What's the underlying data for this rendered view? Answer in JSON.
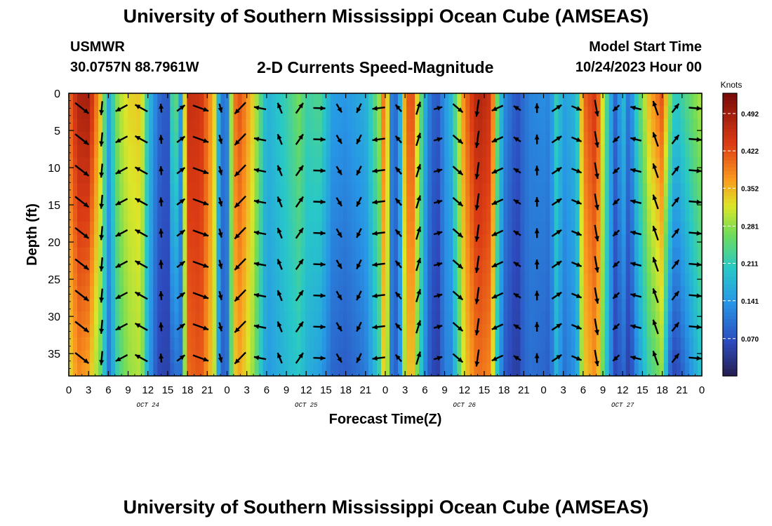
{
  "header": {
    "title": "University of Southern Mississippi Ocean Cube (AMSEAS)",
    "station": "USMWR",
    "coords": "30.0757N  88.7961W",
    "subtitle": "2-D Currents Speed-Magnitude",
    "start_label": "Model Start Time",
    "start_value": "10/24/2023 Hour 00"
  },
  "footer": {
    "title": "University of Southern Mississippi Ocean Cube (AMSEAS)"
  },
  "chart_data": {
    "type": "heatmap",
    "title": "2-D Currents Speed-Magnitude",
    "xlabel": "Forecast Time(Z)",
    "ylabel": "Depth (ft)",
    "x_range_hours": [
      0,
      96
    ],
    "x_ticks": [
      "0",
      "3",
      "6",
      "9",
      "12",
      "15",
      "18",
      "21",
      "0",
      "3",
      "6",
      "9",
      "12",
      "15",
      "18",
      "21",
      "0",
      "3",
      "6",
      "9",
      "12",
      "15",
      "18",
      "21",
      "0",
      "3",
      "6",
      "9",
      "12",
      "15",
      "18",
      "21",
      "0"
    ],
    "day_labels": [
      "OCT 24",
      "OCT 25",
      "OCT 26",
      "OCT 27"
    ],
    "y_range_ft": [
      0,
      38
    ],
    "y_ticks": [
      "0",
      "5",
      "10",
      "15",
      "20",
      "25",
      "30",
      "35"
    ],
    "y_inverted": true,
    "colorbar": {
      "unit": "Knots",
      "range": [
        0.0,
        0.53
      ],
      "ticks": [
        "0.492",
        "0.422",
        "0.352",
        "0.281",
        "0.211",
        "0.141",
        "0.070"
      ],
      "colormap": "jet"
    },
    "speed_profile": {
      "hours": [
        0,
        1.5,
        3,
        5,
        6,
        7.5,
        9,
        11,
        12,
        13.5,
        15,
        16,
        17,
        18,
        20,
        22,
        23,
        24,
        25,
        26,
        28,
        30,
        33,
        35,
        36,
        38,
        40,
        42,
        45,
        47,
        48,
        49,
        50,
        51,
        52,
        54,
        55,
        56,
        57,
        58,
        60,
        62,
        64,
        65,
        66,
        67,
        68,
        69,
        70,
        72,
        73,
        74,
        75,
        77,
        78,
        80,
        82,
        83,
        84,
        85,
        86,
        88,
        90,
        91,
        92,
        94,
        96
      ],
      "knots_surface": [
        0.4,
        0.48,
        0.49,
        0.33,
        0.15,
        0.29,
        0.33,
        0.34,
        0.2,
        0.1,
        0.07,
        0.3,
        0.14,
        0.46,
        0.45,
        0.35,
        0.1,
        0.12,
        0.39,
        0.42,
        0.33,
        0.17,
        0.22,
        0.27,
        0.22,
        0.24,
        0.15,
        0.14,
        0.17,
        0.28,
        0.44,
        0.1,
        0.1,
        0.39,
        0.44,
        0.17,
        0.09,
        0.08,
        0.14,
        0.18,
        0.39,
        0.48,
        0.45,
        0.25,
        0.13,
        0.1,
        0.07,
        0.1,
        0.12,
        0.13,
        0.12,
        0.22,
        0.15,
        0.18,
        0.4,
        0.45,
        0.18,
        0.08,
        0.2,
        0.09,
        0.2,
        0.35,
        0.42,
        0.3,
        0.2,
        0.25,
        0.3
      ],
      "knots_bottom": [
        0.32,
        0.38,
        0.36,
        0.25,
        0.1,
        0.23,
        0.28,
        0.3,
        0.16,
        0.06,
        0.05,
        0.1,
        0.1,
        0.4,
        0.42,
        0.32,
        0.08,
        0.1,
        0.33,
        0.36,
        0.28,
        0.14,
        0.18,
        0.2,
        0.17,
        0.15,
        0.09,
        0.08,
        0.11,
        0.21,
        0.38,
        0.1,
        0.08,
        0.32,
        0.36,
        0.13,
        0.06,
        0.05,
        0.12,
        0.12,
        0.33,
        0.4,
        0.38,
        0.19,
        0.08,
        0.06,
        0.04,
        0.09,
        0.1,
        0.09,
        0.08,
        0.18,
        0.1,
        0.14,
        0.33,
        0.38,
        0.14,
        0.05,
        0.1,
        0.04,
        0.12,
        0.22,
        0.28,
        0.1,
        0.05,
        0.12,
        0.2
      ]
    }
  }
}
